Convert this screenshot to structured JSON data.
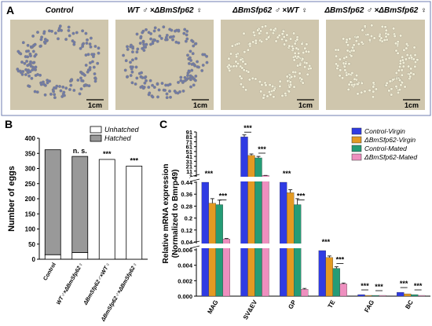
{
  "panel_a": {
    "letter": "A",
    "scale_bar": "1cm",
    "photos": [
      {
        "id": "control",
        "title": "Control",
        "egg_color": "#6f7aa8"
      },
      {
        "id": "wt-m-x-ko-f",
        "title": "WT ♂ ×ΔBmSfp62 ♀",
        "egg_color": "#6f7aa8"
      },
      {
        "id": "ko-m-x-wt-f",
        "title": "ΔBmSfp62 ♂ ×WT ♀",
        "egg_color": "#f2efd8"
      },
      {
        "id": "ko-m-x-ko-f",
        "title": "ΔBmSfp62 ♂ ×ΔBmSfp62 ♀",
        "egg_color": "#f2efd8"
      }
    ]
  },
  "chart_data": [
    {
      "panel": "B",
      "type": "bar",
      "stacked": true,
      "ylabel": "Number of eggs",
      "ylim": [
        0,
        400
      ],
      "yticks": [
        0,
        50,
        100,
        150,
        200,
        250,
        300,
        350,
        400
      ],
      "categories": [
        "Control",
        "WT♂×ΔBmSfp62♀",
        "ΔBmSfp62♂×WT♀",
        "ΔBmSfp62♂×ΔBmSfp62♀"
      ],
      "series": [
        {
          "name": "Unhatched",
          "color": "#ffffff",
          "values": [
            15,
            22,
            330,
            308
          ]
        },
        {
          "name": "Hatched",
          "color": "#999999",
          "values": [
            347,
            318,
            0,
            0
          ]
        }
      ],
      "annotations": [
        "",
        "n. s.",
        "***",
        "***"
      ],
      "legend_position": "top-right"
    },
    {
      "panel": "C",
      "type": "bar",
      "ylabel": "Relative mRNA expression",
      "ylabel2": "(Normalized to Bmrp49)",
      "categories": [
        "MAG",
        "SV&EV",
        "GP",
        "TE",
        "FAG",
        "BC"
      ],
      "axis_breaks": [
        0.006,
        0.04,
        0.44
      ],
      "yticks": [
        0.0,
        0.002,
        0.004,
        0.006,
        0.04,
        0.12,
        0.2,
        0.28,
        0.36,
        0.44,
        1,
        11,
        21,
        31,
        41,
        51,
        61,
        71,
        81,
        91
      ],
      "series": [
        {
          "name": "Control-Virgin",
          "color": "#2f3be3",
          "values": [
            0.44,
            81,
            0.44,
            0.0059,
            0.0002,
            0.0005
          ],
          "errors": [
            0,
            4,
            0,
            0,
            0,
            0
          ]
        },
        {
          "name": "ΔBmSfp62-Virgin",
          "color": "#e39a22",
          "values": [
            0.3,
            43,
            0.37,
            0.005,
            0.0001,
            0.0003
          ],
          "errors": [
            0.03,
            3,
            0.02,
            0.0002,
            0,
            0
          ]
        },
        {
          "name": "Control-Mated",
          "color": "#259c76",
          "values": [
            0.29,
            38,
            0.29,
            0.0036,
            0.0001,
            0.0002
          ],
          "errors": [
            0.03,
            3,
            0.04,
            0.0002,
            0,
            0
          ]
        },
        {
          "name": "ΔBmSfp62-Mated",
          "color": "#ee8fbf",
          "values": [
            0.06,
            2,
            0.0009,
            0.0016,
            0.0001,
            0.0001
          ],
          "errors": [
            0.003,
            0.2,
            0.0001,
            0.0001,
            0,
            0
          ]
        }
      ],
      "significance": "***",
      "legend_position": "top-right"
    }
  ]
}
